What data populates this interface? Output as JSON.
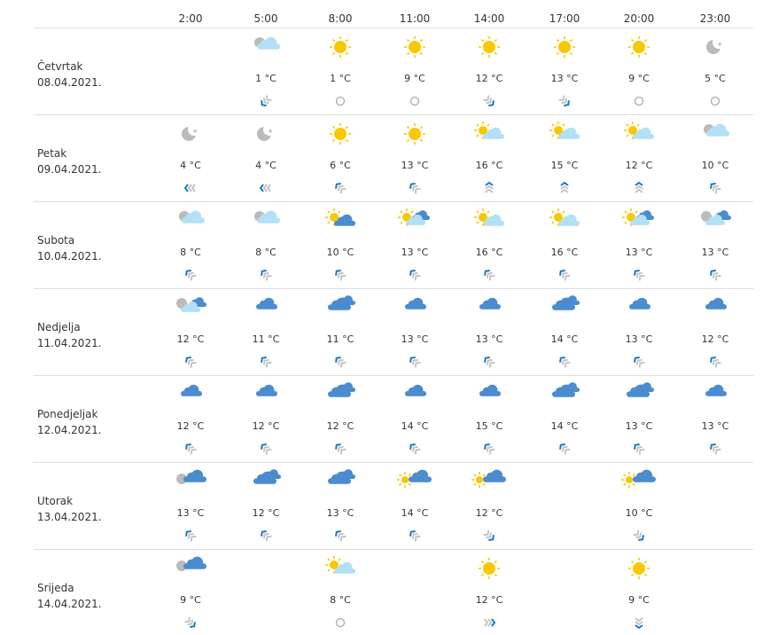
{
  "hours": [
    "2:00",
    "5:00",
    "8:00",
    "11:00",
    "14:00",
    "17:00",
    "20:00",
    "23:00"
  ],
  "colors": {
    "sun": "#f9c800",
    "cloud_light": "#b3e0f7",
    "cloud_blue": "#4a8ccf",
    "moon": "#bbbbbb",
    "wind_accent": "#1a7ac0",
    "wind_muted": "#c4c4c4",
    "divider": "#dddddd"
  },
  "days": [
    {
      "name": "Četvrtak",
      "date": "08.04.2021.",
      "cells": [
        null,
        {
          "icon": "night-cloud",
          "temp": "1 °C",
          "wind": "down-left"
        },
        {
          "icon": "sun",
          "temp": "1 °C",
          "wind": "calm"
        },
        {
          "icon": "sun",
          "temp": "9 °C",
          "wind": "calm"
        },
        {
          "icon": "sun",
          "temp": "12 °C",
          "wind": "down-right"
        },
        {
          "icon": "sun",
          "temp": "13 °C",
          "wind": "down-right"
        },
        {
          "icon": "sun",
          "temp": "9 °C",
          "wind": "calm"
        },
        {
          "icon": "moon",
          "temp": "5 °C",
          "wind": "calm"
        }
      ]
    },
    {
      "name": "Petak",
      "date": "09.04.2021.",
      "cells": [
        {
          "icon": "moon",
          "temp": "4 °C",
          "wind": "left"
        },
        {
          "icon": "moon",
          "temp": "4 °C",
          "wind": "left"
        },
        {
          "icon": "sun",
          "temp": "6 °C",
          "wind": "up-left"
        },
        {
          "icon": "sun",
          "temp": "13 °C",
          "wind": "up-left"
        },
        {
          "icon": "sun-cloud",
          "temp": "16 °C",
          "wind": "up"
        },
        {
          "icon": "sun-cloud",
          "temp": "15 °C",
          "wind": "up"
        },
        {
          "icon": "sun-cloud",
          "temp": "12 °C",
          "wind": "up"
        },
        {
          "icon": "night-cloud",
          "temp": "10 °C",
          "wind": "up-left"
        }
      ]
    },
    {
      "name": "Subota",
      "date": "10.04.2021.",
      "cells": [
        {
          "icon": "night-cloud",
          "temp": "8 °C",
          "wind": "up-left"
        },
        {
          "icon": "night-cloud",
          "temp": "8 °C",
          "wind": "up-left"
        },
        {
          "icon": "sun-bluecloud",
          "temp": "10 °C",
          "wind": "up-left"
        },
        {
          "icon": "sun-clouds",
          "temp": "13 °C",
          "wind": "up-left"
        },
        {
          "icon": "sun-cloud",
          "temp": "16 °C",
          "wind": "up-left"
        },
        {
          "icon": "sun-cloud",
          "temp": "16 °C",
          "wind": "up-left"
        },
        {
          "icon": "sun-clouds",
          "temp": "13 °C",
          "wind": "up-left"
        },
        {
          "icon": "night-clouds",
          "temp": "13 °C",
          "wind": "up-left"
        }
      ]
    },
    {
      "name": "Nedjelja",
      "date": "11.04.2021.",
      "cells": [
        {
          "icon": "night-clouds",
          "temp": "12 °C",
          "wind": "up-left"
        },
        {
          "icon": "cloud",
          "temp": "11 °C",
          "wind": "up-left"
        },
        {
          "icon": "cloud-rain",
          "temp": "11 °C",
          "wind": "up-left"
        },
        {
          "icon": "cloud",
          "temp": "13 °C",
          "wind": "up-left"
        },
        {
          "icon": "cloud",
          "temp": "13 °C",
          "wind": "up-left"
        },
        {
          "icon": "cloud-rain",
          "temp": "14 °C",
          "wind": "up-left"
        },
        {
          "icon": "cloud",
          "temp": "13 °C",
          "wind": "up-left"
        },
        {
          "icon": "cloud",
          "temp": "12 °C",
          "wind": "up-left"
        }
      ]
    },
    {
      "name": "Ponedjeljak",
      "date": "12.04.2021.",
      "cells": [
        {
          "icon": "cloud",
          "temp": "12 °C",
          "wind": "up-left"
        },
        {
          "icon": "cloud",
          "temp": "12 °C",
          "wind": "up-left"
        },
        {
          "icon": "cloud-rain",
          "temp": "12 °C",
          "wind": "up-left"
        },
        {
          "icon": "cloud",
          "temp": "14 °C",
          "wind": "up-left"
        },
        {
          "icon": "cloud",
          "temp": "15 °C",
          "wind": "up-left"
        },
        {
          "icon": "cloud-rain",
          "temp": "14 °C",
          "wind": "up-left"
        },
        {
          "icon": "cloud-rain",
          "temp": "13 °C",
          "wind": "up-left"
        },
        {
          "icon": "cloud",
          "temp": "13 °C",
          "wind": "up-left"
        }
      ]
    },
    {
      "name": "Utorak",
      "date": "13.04.2021.",
      "cells": [
        {
          "icon": "night-rain",
          "temp": "13 °C",
          "wind": "up-left"
        },
        {
          "icon": "cloud-rain",
          "temp": "12 °C",
          "wind": "up-left"
        },
        {
          "icon": "cloud-rain",
          "temp": "13 °C",
          "wind": "up-left"
        },
        {
          "icon": "sun-rain",
          "temp": "14 °C",
          "wind": "up-left"
        },
        {
          "icon": "sun-showers",
          "temp": "12 °C",
          "wind": "down-right"
        },
        null,
        {
          "icon": "sun-rain",
          "temp": "10 °C",
          "wind": "down-right"
        },
        null
      ]
    },
    {
      "name": "Srijeda",
      "date": "14.04.2021.",
      "cells": [
        {
          "icon": "night-rain",
          "temp": "9 °C",
          "wind": "down-right"
        },
        null,
        {
          "icon": "sun-cloud",
          "temp": "8 °C",
          "wind": "calm"
        },
        null,
        {
          "icon": "sun",
          "temp": "12 °C",
          "wind": "right"
        },
        null,
        {
          "icon": "sun",
          "temp": "9 °C",
          "wind": "down"
        },
        null
      ]
    }
  ]
}
